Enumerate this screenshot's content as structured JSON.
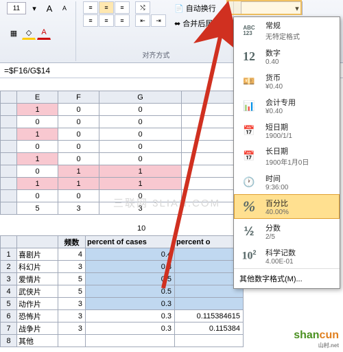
{
  "ribbon": {
    "font_size": "11",
    "font_group_label": "",
    "align_group_label": "对齐方式",
    "wrap_text": "自动换行",
    "merge_center": "合并后居中",
    "number_group_label": ""
  },
  "formula_bar": {
    "formula": "=$F16/G$14"
  },
  "grid": {
    "top_headers": [
      "E",
      "F",
      "G"
    ],
    "top_rows": [
      {
        "e": "1",
        "f": "0",
        "g": "0",
        "pink_e": true
      },
      {
        "e": "0",
        "f": "0",
        "g": "0"
      },
      {
        "e": "1",
        "f": "0",
        "g": "0",
        "pink_e": true
      },
      {
        "e": "0",
        "f": "0",
        "g": "0"
      },
      {
        "e": "1",
        "f": "0",
        "g": "0",
        "pink_e": true
      },
      {
        "e": "0",
        "f": "1",
        "g": "1",
        "pink_f": true,
        "pink_g": true
      },
      {
        "e": "1",
        "f": "1",
        "g": "1",
        "pink_e": true,
        "pink_f": true,
        "pink_g": true
      },
      {
        "e": "0",
        "f": "0",
        "g": "0"
      },
      {
        "e": "5",
        "f": "3",
        "g": "3"
      }
    ],
    "mid_value": "10",
    "bottom_headers": [
      "",
      "频数",
      "percent of cases",
      "percent o"
    ],
    "bottom_rows": [
      {
        "num": "1",
        "label": "喜剧片",
        "freq": "4",
        "pct": "0.4",
        "pct2": "0."
      },
      {
        "num": "2",
        "label": "科幻片",
        "freq": "3",
        "pct": "0.3",
        "pct2": "0."
      },
      {
        "num": "3",
        "label": "爱情片",
        "freq": "5",
        "pct": "0.5",
        "pct2": "0"
      },
      {
        "num": "4",
        "label": "武侠片",
        "freq": "5",
        "pct": "0.5",
        "pct2": ""
      },
      {
        "num": "5",
        "label": "动作片",
        "freq": "3",
        "pct": "0.3",
        "pct2": ""
      },
      {
        "num": "6",
        "label": "恐怖片",
        "freq": "3",
        "pct": "0.3",
        "pct2": "0.115384615"
      },
      {
        "num": "7",
        "label": "战争片",
        "freq": "3",
        "pct": "0.3",
        "pct2": "0.115384"
      },
      {
        "num": "8",
        "label": "其他",
        "freq": "",
        "pct": "",
        "pct2": ""
      }
    ]
  },
  "number_formats": [
    {
      "icon_type": "abc123",
      "icon_text": "ABC\n123",
      "label": "常规",
      "sample": "无特定格式"
    },
    {
      "icon_type": "big",
      "icon_text": "12",
      "label": "数字",
      "sample": "0.40"
    },
    {
      "icon_type": "currency",
      "icon_text": "💴",
      "label": "货币",
      "sample": "¥0.40"
    },
    {
      "icon_type": "accounting",
      "icon_text": "📊",
      "label": "会计专用",
      "sample": "¥0.40"
    },
    {
      "icon_type": "date",
      "icon_text": "📅",
      "label": "短日期",
      "sample": "1900/1/1"
    },
    {
      "icon_type": "date",
      "icon_text": "📅",
      "label": "长日期",
      "sample": "1900年1月0日"
    },
    {
      "icon_type": "time",
      "icon_text": "🕐",
      "label": "时间",
      "sample": "9:36:00"
    },
    {
      "icon_type": "percent",
      "icon_text": "%",
      "label": "百分比",
      "sample": "40.00%",
      "highlighted": true
    },
    {
      "icon_type": "fraction",
      "icon_text": "½",
      "label": "分数",
      "sample": "2/5"
    },
    {
      "icon_type": "sci",
      "icon_text": "10²",
      "label": "科学记数",
      "sample": "4.00E-01"
    }
  ],
  "number_more": "其他数字格式(M)...",
  "watermark": "三联网 3LIAN.COM",
  "logo": {
    "part1": "shan",
    "part2": "cun",
    "sub": "山村.net"
  },
  "colors": {
    "pink": "#f8c8d0",
    "blue": "#c0d8f0",
    "highlight": "#ffe090",
    "arrow": "#d03020"
  }
}
